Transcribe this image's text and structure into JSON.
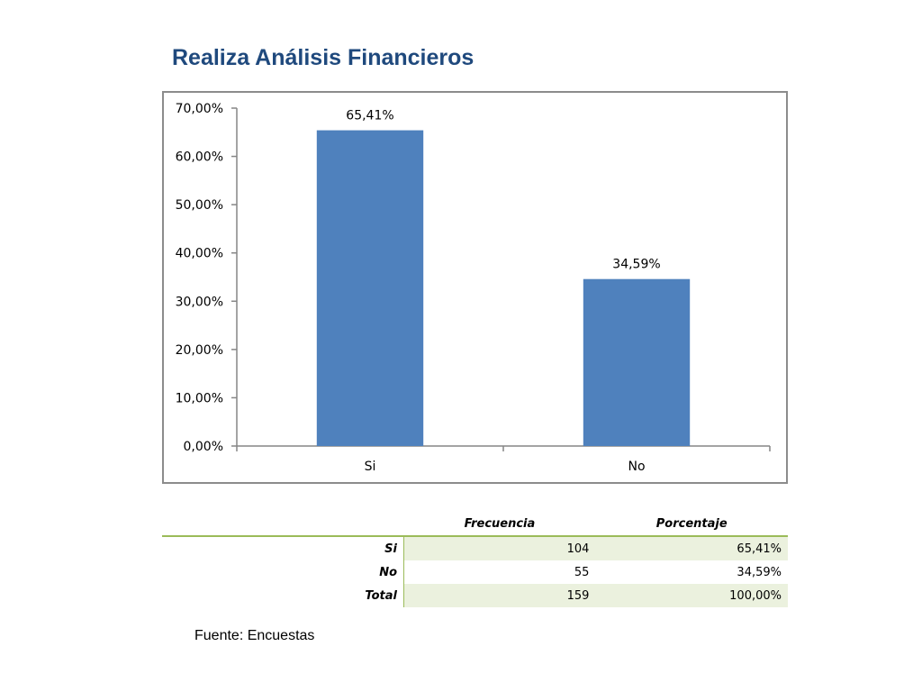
{
  "page": {
    "title": "Realiza Análisis Financieros",
    "source": "Fuente: Encuestas"
  },
  "chart_data": {
    "type": "bar",
    "title": "",
    "xlabel": "",
    "ylabel": "",
    "categories": [
      "Si",
      "No"
    ],
    "values": [
      65.41,
      34.59
    ],
    "data_labels": [
      "65,41%",
      "34,59%"
    ],
    "ylim": [
      0,
      70
    ],
    "yticks": [
      0,
      10,
      20,
      30,
      40,
      50,
      60,
      70
    ],
    "ytick_labels": [
      "0,00%",
      "10,00%",
      "20,00%",
      "30,00%",
      "40,00%",
      "50,00%",
      "60,00%",
      "70,00%"
    ],
    "grid": false,
    "legend": "none",
    "bar_color": "#4F81BD"
  },
  "table": {
    "headers": [
      "Frecuencia",
      "Porcentaje"
    ],
    "rows": [
      {
        "label": "Si",
        "frecuencia": "104",
        "porcentaje": "65,41%"
      },
      {
        "label": "No",
        "frecuencia": "55",
        "porcentaje": "34,59%"
      },
      {
        "label": "Total",
        "frecuencia": "159",
        "porcentaje": "100,00%"
      }
    ],
    "accent_color": "#9BBB59",
    "shade_color": "#EBF1DE"
  }
}
